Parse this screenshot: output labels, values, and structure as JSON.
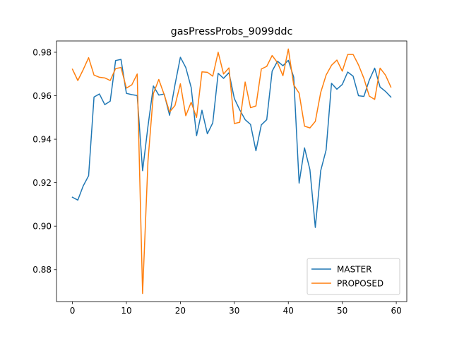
{
  "chart_data": {
    "type": "line",
    "title": "gasPressProbs_9099ddc",
    "xlabel": "",
    "ylabel": "",
    "xlim": [
      -2.95,
      61.95
    ],
    "ylim": [
      0.8653,
      0.9852
    ],
    "x_ticks": [
      0,
      10,
      20,
      30,
      40,
      50,
      60
    ],
    "y_ticks": [
      0.88,
      0.9,
      0.92,
      0.94,
      0.96,
      0.98
    ],
    "y_tick_labels": [
      "0.88",
      "0.90",
      "0.92",
      "0.94",
      "0.96",
      "0.98"
    ],
    "grid": false,
    "legend_position": "lower right",
    "series": [
      {
        "name": "MASTER",
        "color": "#1f77b4",
        "values": [
          0.9133,
          0.912,
          0.9185,
          0.9232,
          0.9594,
          0.9608,
          0.9559,
          0.9575,
          0.9762,
          0.9767,
          0.9611,
          0.9605,
          0.9601,
          0.9255,
          0.946,
          0.9645,
          0.9603,
          0.9608,
          0.951,
          0.965,
          0.9777,
          0.973,
          0.9638,
          0.9416,
          0.9533,
          0.9425,
          0.9475,
          0.9703,
          0.968,
          0.9706,
          0.9587,
          0.9535,
          0.949,
          0.9468,
          0.9347,
          0.9466,
          0.949,
          0.9713,
          0.9759,
          0.9738,
          0.9763,
          0.9685,
          0.9198,
          0.936,
          0.926,
          0.8994,
          0.9255,
          0.935,
          0.9657,
          0.963,
          0.9652,
          0.9709,
          0.969,
          0.96,
          0.9597,
          0.9672,
          0.9727,
          0.964,
          0.962,
          0.9594
        ]
      },
      {
        "name": "PROPOSED",
        "color": "#ff7f0e",
        "values": [
          0.9722,
          0.967,
          0.972,
          0.9775,
          0.9695,
          0.9685,
          0.9682,
          0.967,
          0.9725,
          0.973,
          0.9635,
          0.965,
          0.97,
          0.869,
          0.93,
          0.961,
          0.9675,
          0.9605,
          0.9525,
          0.9555,
          0.9655,
          0.9508,
          0.957,
          0.95,
          0.971,
          0.9708,
          0.969,
          0.98,
          0.97,
          0.9728,
          0.9472,
          0.9478,
          0.9663,
          0.9545,
          0.9553,
          0.9723,
          0.9735,
          0.9785,
          0.9752,
          0.9692,
          0.9815,
          0.965,
          0.9612,
          0.946,
          0.9452,
          0.9482,
          0.9615,
          0.9695,
          0.974,
          0.9764,
          0.9713,
          0.979,
          0.979,
          0.9742,
          0.968,
          0.9598,
          0.9583,
          0.9727,
          0.9695,
          0.964
        ]
      }
    ]
  }
}
